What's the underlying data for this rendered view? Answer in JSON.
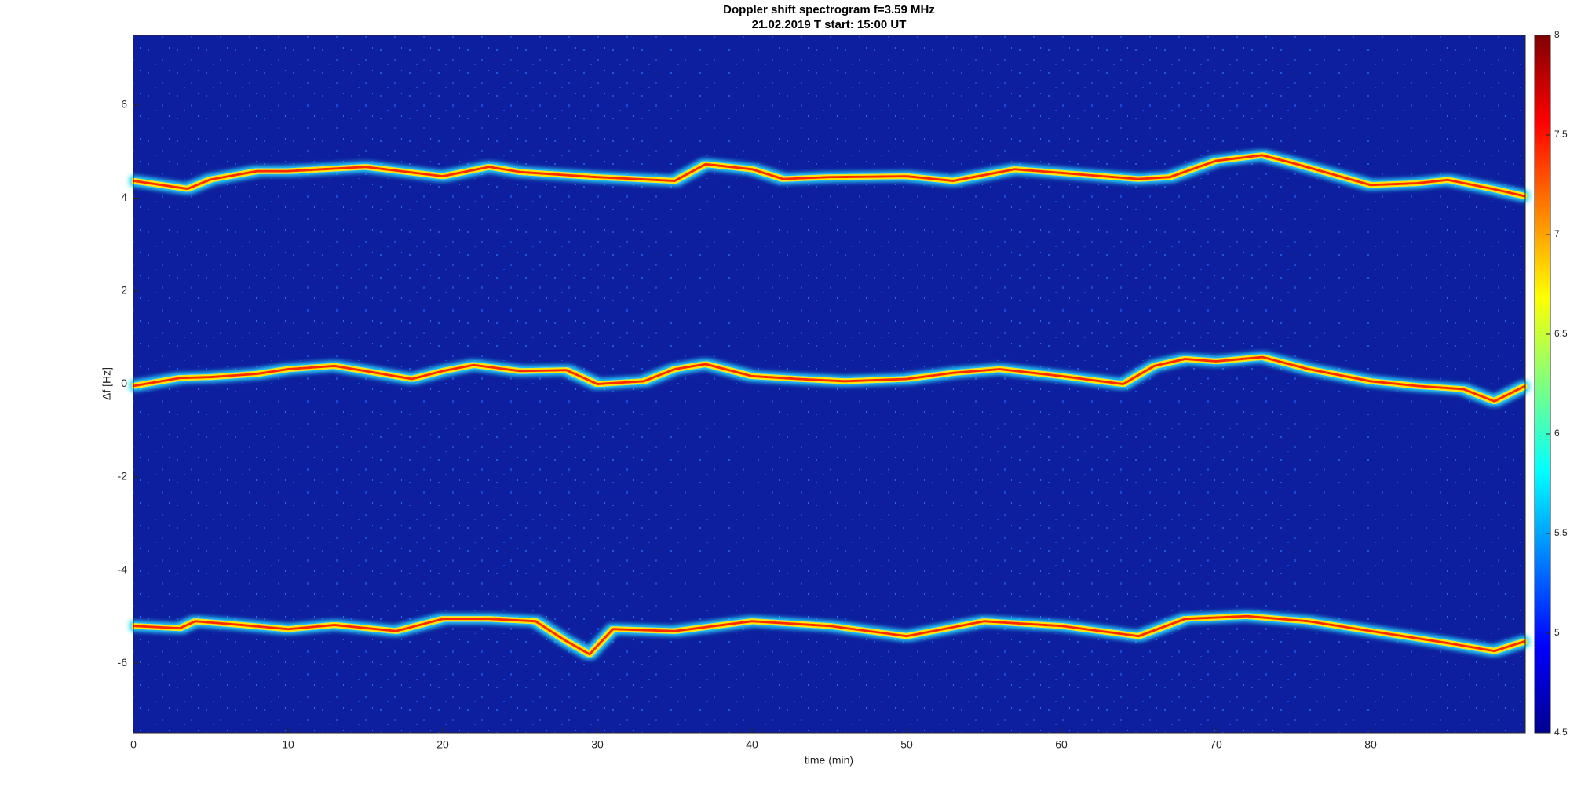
{
  "chart_data": {
    "type": "spectrogram",
    "title": "Doppler shift spectrogram f=3.59 MHz",
    "subtitle": "21.02.2019   T start: 15:00 UT",
    "xlabel": "time (min)",
    "ylabel": "Δf [Hz]",
    "xlim": [
      0,
      90
    ],
    "xticks": [
      0,
      10,
      20,
      30,
      40,
      50,
      60,
      70,
      80
    ],
    "ylim": [
      -7.5,
      7.5
    ],
    "yticks": [
      -6,
      -4,
      -2,
      0,
      2,
      4,
      6
    ],
    "colormap": "jet",
    "clim": [
      4.5,
      8
    ],
    "cticks": [
      4.5,
      5,
      5.5,
      6,
      6.5,
      7,
      7.5,
      8
    ],
    "series": [
      {
        "color": "#ff2a00",
        "x": [
          0,
          3.5,
          5,
          8,
          10,
          15,
          20,
          23,
          25,
          30,
          35,
          37,
          40,
          42,
          45,
          50,
          53,
          57,
          60,
          65,
          67,
          70,
          73,
          75,
          80,
          83,
          85,
          88,
          90
        ],
        "values": [
          4.37,
          4.2,
          4.4,
          4.58,
          4.58,
          4.67,
          4.47,
          4.67,
          4.56,
          4.45,
          4.37,
          4.73,
          4.62,
          4.41,
          4.45,
          4.47,
          4.37,
          4.62,
          4.54,
          4.41,
          4.45,
          4.8,
          4.92,
          4.75,
          4.28,
          4.32,
          4.39,
          4.19,
          4.04
        ]
      },
      {
        "color": "#ff2a00",
        "x": [
          0,
          3,
          5,
          8,
          10,
          13,
          15,
          18,
          20,
          22,
          25,
          28,
          30,
          33,
          35,
          37,
          40,
          43,
          46,
          50,
          53,
          56,
          60,
          64,
          66,
          68,
          70,
          73,
          76,
          80,
          83,
          86,
          88,
          90
        ],
        "values": [
          -0.04,
          0.13,
          0.15,
          0.22,
          0.32,
          0.39,
          0.28,
          0.11,
          0.28,
          0.41,
          0.28,
          0.3,
          0,
          0.06,
          0.32,
          0.43,
          0.17,
          0.11,
          0.06,
          0.11,
          0.24,
          0.32,
          0.17,
          0,
          0.39,
          0.54,
          0.49,
          0.58,
          0.32,
          0.06,
          -0.04,
          -0.11,
          -0.37,
          -0.04
        ]
      },
      {
        "color": "#ff2a00",
        "x": [
          0,
          3,
          4,
          7,
          10,
          13,
          17,
          20,
          23,
          26,
          28,
          29.5,
          31,
          35,
          40,
          45,
          50,
          55,
          60,
          65,
          68,
          72,
          76,
          80,
          85,
          88,
          90
        ],
        "values": [
          -5.2,
          -5.25,
          -5.1,
          -5.18,
          -5.27,
          -5.18,
          -5.31,
          -5.05,
          -5.05,
          -5.1,
          -5.53,
          -5.81,
          -5.27,
          -5.31,
          -5.1,
          -5.2,
          -5.42,
          -5.1,
          -5.2,
          -5.42,
          -5.05,
          -4.99,
          -5.1,
          -5.31,
          -5.57,
          -5.74,
          -5.53
        ]
      }
    ]
  }
}
